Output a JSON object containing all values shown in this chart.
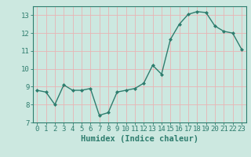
{
  "x": [
    0,
    1,
    2,
    3,
    4,
    5,
    6,
    7,
    8,
    9,
    10,
    11,
    12,
    13,
    14,
    15,
    16,
    17,
    18,
    19,
    20,
    21,
    22,
    23
  ],
  "y": [
    8.8,
    8.7,
    8.0,
    9.1,
    8.8,
    8.8,
    8.9,
    7.4,
    7.55,
    8.7,
    8.8,
    8.9,
    9.2,
    10.2,
    9.7,
    11.65,
    12.5,
    13.05,
    13.2,
    13.15,
    12.4,
    12.1,
    12.0,
    11.1
  ],
  "line_color": "#2e7d6e",
  "marker": "D",
  "marker_size": 2,
  "line_width": 1.0,
  "xlabel": "Humidex (Indice chaleur)",
  "xlim": [
    -0.5,
    23.5
  ],
  "ylim": [
    7,
    13.5
  ],
  "yticks": [
    7,
    8,
    9,
    10,
    11,
    12,
    13
  ],
  "xticks": [
    0,
    1,
    2,
    3,
    4,
    5,
    6,
    7,
    8,
    9,
    10,
    11,
    12,
    13,
    14,
    15,
    16,
    17,
    18,
    19,
    20,
    21,
    22,
    23
  ],
  "bg_color": "#cce8e0",
  "grid_color": "#e8b4b4",
  "font_color": "#2e7d6e",
  "tick_fontsize": 6.5,
  "xlabel_fontsize": 7.5
}
